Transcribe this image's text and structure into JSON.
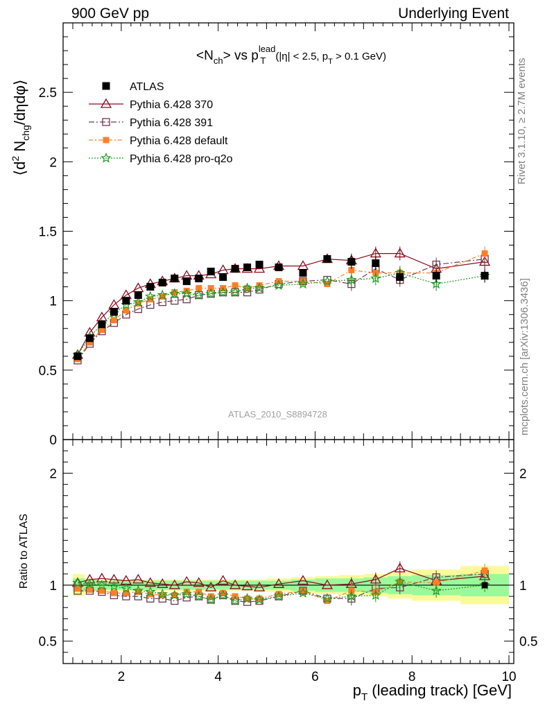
{
  "header": {
    "energy_label": "900 GeV pp",
    "process_label": "Underlying Event"
  },
  "side_text": {
    "rivet": "Rivet 3.1.10, ≥ 2.7M events",
    "mcplots": "mcplots.cern.ch [arXiv:1306.3436]"
  },
  "analysis_id": "ATLAS_2010_S8894728",
  "colors": {
    "ATLAS": "#000000",
    "Pythia 6.428 370": "#8b0a1e",
    "Pythia 6.428 391": "#6b3a50",
    "Pythia 6.428 default": "#ff7f27",
    "Pythia 6.428 pro-q2o": "#1e9b1e",
    "band_inner": "#9afa9a",
    "band_outer": "#fafa9a"
  },
  "chart_data": [
    {
      "type": "scatter",
      "panel": "main",
      "title": "<N_ch> vs p_T^lead (|η| < 2.5, p_T > 0.1 GeV)",
      "ylabel": "⟨d² N_chg/dηdφ⟩",
      "xlim": [
        0.8,
        10.1
      ],
      "ylim": [
        0,
        3
      ],
      "yticks": [
        0,
        0.5,
        1,
        1.5,
        2,
        2.5
      ],
      "ytick_labels": [
        "0",
        "0.5",
        "1",
        "1.5",
        "2",
        "2.5"
      ],
      "legend": [
        "ATLAS",
        "Pythia 6.428 370",
        "Pythia 6.428 391",
        "Pythia 6.428 default",
        "Pythia 6.428 pro-q2o"
      ],
      "legend_position": "top-left",
      "x": [
        1.1,
        1.35,
        1.6,
        1.85,
        2.1,
        2.35,
        2.6,
        2.85,
        3.1,
        3.35,
        3.6,
        3.85,
        4.1,
        4.35,
        4.6,
        4.85,
        5.25,
        5.75,
        6.25,
        6.75,
        7.25,
        7.75,
        8.5,
        9.5
      ],
      "series": [
        {
          "name": "ATLAS",
          "marker": "filled-square",
          "values": [
            0.6,
            0.73,
            0.83,
            0.92,
            1.0,
            1.04,
            1.1,
            1.13,
            1.16,
            1.14,
            1.16,
            1.21,
            1.17,
            1.23,
            1.24,
            1.26,
            1.24,
            1.2,
            1.3,
            1.28,
            1.27,
            1.17,
            1.18,
            1.18
          ]
        },
        {
          "name": "Pythia 6.428 370",
          "marker": "open-triangle",
          "line": "solid",
          "values": [
            0.61,
            0.77,
            0.88,
            0.97,
            1.04,
            1.09,
            1.12,
            1.14,
            1.16,
            1.18,
            1.18,
            1.19,
            1.22,
            1.23,
            1.23,
            1.23,
            1.25,
            1.25,
            1.3,
            1.29,
            1.34,
            1.34,
            1.23,
            1.28
          ]
        },
        {
          "name": "Pythia 6.428 391",
          "marker": "open-square",
          "line": "dash-dot",
          "values": [
            0.57,
            0.69,
            0.78,
            0.84,
            0.9,
            0.94,
            0.97,
            0.99,
            1.0,
            1.01,
            1.04,
            1.05,
            1.06,
            1.06,
            1.06,
            1.08,
            1.12,
            1.14,
            1.15,
            1.12,
            1.23,
            1.15,
            1.26,
            1.3
          ]
        },
        {
          "name": "Pythia 6.428 default",
          "marker": "filled-small-square",
          "line": "dash-dot",
          "values": [
            0.58,
            0.7,
            0.79,
            0.86,
            0.93,
            0.98,
            1.01,
            1.03,
            1.06,
            1.07,
            1.09,
            1.09,
            1.09,
            1.11,
            1.09,
            1.11,
            1.14,
            1.14,
            1.12,
            1.22,
            1.2,
            1.2,
            1.2,
            1.34
          ]
        },
        {
          "name": "Pythia 6.428 pro-q2o",
          "marker": "open-star",
          "line": "dotted",
          "values": [
            0.61,
            0.74,
            0.83,
            0.91,
            0.97,
            0.99,
            1.03,
            1.04,
            1.05,
            1.05,
            1.04,
            1.05,
            1.06,
            1.06,
            1.09,
            1.09,
            1.11,
            1.12,
            1.14,
            1.15,
            1.16,
            1.2,
            1.12,
            1.18
          ]
        }
      ]
    },
    {
      "type": "scatter",
      "panel": "ratio",
      "xlabel": "p_T (leading track) [GeV]",
      "ylabel": "Ratio to ATLAS",
      "xlim": [
        0.8,
        10.1
      ],
      "ylim": [
        0.3,
        2.3
      ],
      "xticks": [
        2,
        4,
        6,
        8,
        10
      ],
      "xtick_labels": [
        "2",
        "4",
        "6",
        "8",
        "10"
      ],
      "yticks": [
        0.5,
        1,
        2
      ],
      "ytick_labels": [
        "0.5",
        "1",
        "2"
      ],
      "reference_line": 1,
      "band_edges": [
        1.0,
        1.25,
        1.5,
        1.75,
        2.0,
        2.25,
        2.5,
        2.75,
        3.0,
        3.25,
        3.5,
        3.75,
        4.0,
        4.25,
        4.5,
        4.75,
        5.0,
        5.5,
        6.0,
        6.5,
        7.0,
        7.5,
        8.0,
        9.0,
        10.0
      ],
      "band_inner": [
        0.06,
        0.05,
        0.04,
        0.04,
        0.04,
        0.04,
        0.04,
        0.04,
        0.04,
        0.04,
        0.04,
        0.04,
        0.04,
        0.04,
        0.04,
        0.04,
        0.04,
        0.05,
        0.06,
        0.06,
        0.07,
        0.08,
        0.09,
        0.1
      ],
      "band_outer": [
        0.1,
        0.06,
        0.05,
        0.05,
        0.05,
        0.05,
        0.05,
        0.05,
        0.05,
        0.05,
        0.05,
        0.05,
        0.05,
        0.05,
        0.05,
        0.05,
        0.06,
        0.07,
        0.08,
        0.09,
        0.1,
        0.12,
        0.14,
        0.17
      ],
      "x": [
        1.1,
        1.35,
        1.6,
        1.85,
        2.1,
        2.35,
        2.6,
        2.85,
        3.1,
        3.35,
        3.6,
        3.85,
        4.1,
        4.35,
        4.6,
        4.85,
        5.25,
        5.75,
        6.25,
        6.75,
        7.25,
        7.75,
        8.5,
        9.5
      ],
      "series": [
        {
          "name": "Pythia 6.428 370",
          "values": [
            1.02,
            1.05,
            1.06,
            1.05,
            1.04,
            1.05,
            1.02,
            1.01,
            1.0,
            1.03,
            1.02,
            0.98,
            1.04,
            1.0,
            0.99,
            0.98,
            1.01,
            1.04,
            1.0,
            1.01,
            1.05,
            1.15,
            1.04,
            1.08
          ]
        },
        {
          "name": "Pythia 6.428 391",
          "values": [
            0.95,
            0.95,
            0.94,
            0.91,
            0.9,
            0.9,
            0.88,
            0.88,
            0.86,
            0.89,
            0.9,
            0.87,
            0.91,
            0.86,
            0.85,
            0.86,
            0.9,
            0.95,
            0.88,
            0.88,
            0.97,
            0.98,
            1.07,
            1.1
          ]
        },
        {
          "name": "Pythia 6.428 default",
          "values": [
            0.97,
            0.96,
            0.95,
            0.93,
            0.93,
            0.94,
            0.92,
            0.91,
            0.91,
            0.94,
            0.94,
            0.9,
            0.93,
            0.9,
            0.88,
            0.88,
            0.92,
            0.95,
            0.86,
            0.95,
            0.94,
            1.03,
            1.02,
            1.13
          ]
        },
        {
          "name": "Pythia 6.428 pro-q2o",
          "values": [
            1.02,
            1.01,
            1.0,
            0.99,
            0.97,
            0.95,
            0.94,
            0.92,
            0.91,
            0.92,
            0.9,
            0.87,
            0.91,
            0.86,
            0.88,
            0.87,
            0.9,
            0.93,
            0.88,
            0.9,
            0.91,
            1.03,
            0.95,
            1.0
          ]
        }
      ]
    }
  ]
}
